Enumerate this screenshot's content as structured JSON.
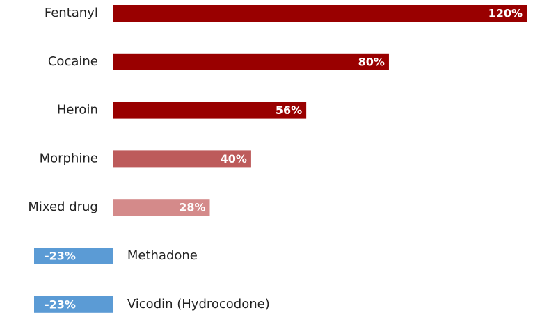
{
  "chart_data": {
    "type": "barh",
    "categories": [
      "Fentanyl",
      "Cocaine",
      "Heroin",
      "Morphine",
      "Mixed drug",
      "Methadone",
      "Vicodin (Hydrocodone)"
    ],
    "values": [
      120,
      80,
      56,
      40,
      28,
      -23,
      -23
    ],
    "value_labels": [
      "120%",
      "80%",
      "56%",
      "40%",
      "28%",
      "-23%",
      "-23%"
    ],
    "colors": [
      "#990000",
      "#990000",
      "#990000",
      "#bd5b5b",
      "#d48a8a",
      "#5b9bd5",
      "#5b9bd5"
    ]
  }
}
